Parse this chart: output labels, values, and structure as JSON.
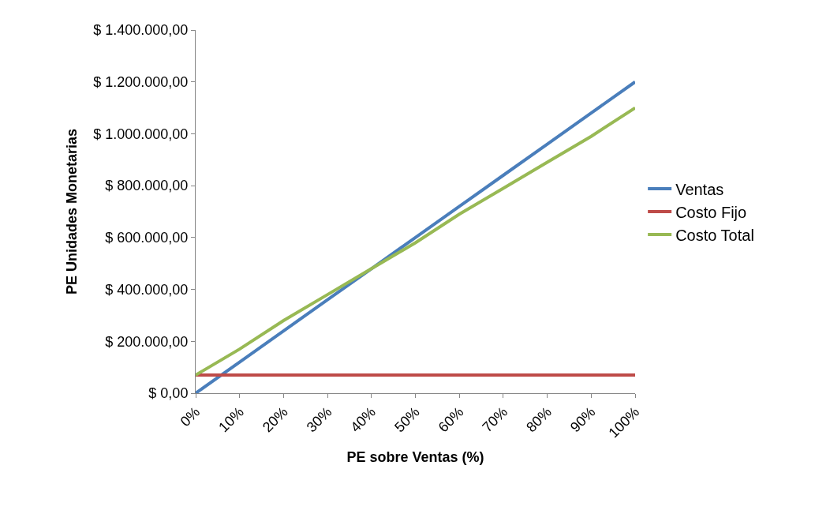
{
  "chart_data": {
    "type": "line",
    "xlabel": "PE sobre Ventas (%)",
    "ylabel": "PE Unidades Monetarias",
    "categories": [
      "0%",
      "10%",
      "20%",
      "30%",
      "40%",
      "50%",
      "60%",
      "70%",
      "80%",
      "90%",
      "100%"
    ],
    "series": [
      {
        "name": "Ventas",
        "color": "#4a7ebb",
        "values": [
          0,
          120000,
          240000,
          360000,
          480000,
          600000,
          720000,
          840000,
          960000,
          1080000,
          1200000
        ]
      },
      {
        "name": "Costo Fijo",
        "color": "#be4b48",
        "values": [
          70000,
          70000,
          70000,
          70000,
          70000,
          70000,
          70000,
          70000,
          70000,
          70000,
          70000
        ]
      },
      {
        "name": "Costo Total",
        "color": "#98b954",
        "values": [
          70000,
          170000,
          280000,
          380000,
          480000,
          580000,
          690000,
          790000,
          890000,
          990000,
          1100000
        ]
      }
    ],
    "ylim": [
      0,
      1400000
    ],
    "yticks": [
      {
        "value": 0,
        "label": "$ 0,00"
      },
      {
        "value": 200000,
        "label": "$ 200.000,00"
      },
      {
        "value": 400000,
        "label": "$ 400.000,00"
      },
      {
        "value": 600000,
        "label": "$ 600.000,00"
      },
      {
        "value": 800000,
        "label": "$ 800.000,00"
      },
      {
        "value": 1000000,
        "label": "$ 1.000.000,00"
      },
      {
        "value": 1200000,
        "label": "$ 1.200.000,00"
      },
      {
        "value": 1400000,
        "label": "$ 1.400.000,00"
      }
    ],
    "legend": "right",
    "marker": "none",
    "line_style": "solid"
  }
}
